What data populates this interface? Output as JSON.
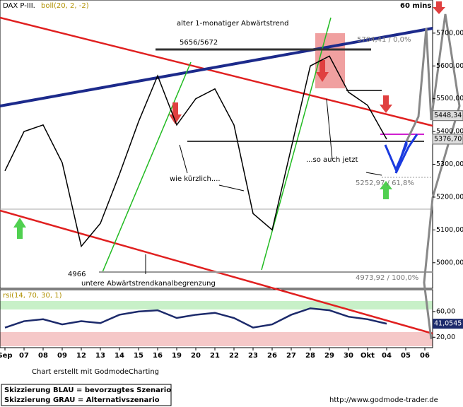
{
  "chart_data": {
    "type": "line",
    "title": "DAX P-III.",
    "subtitle": "boll(20, 2, -2)",
    "timeframe": "60 mins",
    "categories": [
      "Sep",
      "07",
      "08",
      "09",
      "12",
      "13",
      "14",
      "15",
      "16",
      "19",
      "20",
      "21",
      "22",
      "23",
      "26",
      "27",
      "28",
      "29",
      "30",
      "Okt",
      "04",
      "05",
      "06"
    ],
    "series": [
      {
        "name": "DAX P-III.",
        "color": "#000000",
        "values": [
          5280,
          5400,
          5420,
          5305,
          5050,
          5120,
          5270,
          5430,
          5570,
          5420,
          5500,
          5530,
          5420,
          5150,
          5100,
          5350,
          5600,
          5630,
          5520,
          5480,
          5376.7,
          null,
          null
        ]
      },
      {
        "name": "rsi(14, 70, 30, 1)",
        "color": "#1c2a6b",
        "axis": "y2",
        "values": [
          35,
          45,
          48,
          40,
          45,
          42,
          55,
          60,
          62,
          50,
          55,
          58,
          50,
          35,
          40,
          55,
          65,
          62,
          52,
          48,
          41.0545,
          null,
          null
        ]
      }
    ],
    "ylim": [
      4922,
      5801
    ],
    "yticks": [
      {
        "value": 5000,
        "label": "5000,00"
      },
      {
        "value": 5100,
        "label": "5100,00"
      },
      {
        "value": 5200,
        "label": "5200,00"
      },
      {
        "value": 5300,
        "label": "5300,00"
      },
      {
        "value": 5400,
        "label": "5400,00"
      },
      {
        "value": 5500,
        "label": "5500,00"
      },
      {
        "value": 5600,
        "label": "5600,00"
      },
      {
        "value": 5700,
        "label": "5700,00"
      }
    ],
    "y2lim": [
      6,
      94
    ],
    "y2ticks": [
      {
        "value": 60,
        "label": "60,00"
      },
      {
        "value": 20,
        "label": "20,00"
      }
    ],
    "price_tags": [
      {
        "value": 5448.34,
        "label": "5448,34"
      },
      {
        "value": 5376.7,
        "label": "5376,70"
      }
    ],
    "rsi_tag": {
      "value": 41.0545,
      "label": "41,0545"
    },
    "annotations": [
      "alter 1-monatiger Abwärtstrend",
      "5656/5672",
      "5704,41 / 0,0%",
      "wie kürzlich....",
      "...so auch jetzt",
      "5252,97 / 61,8%",
      "4966",
      "untere Abwärtstrendkanalbegrenzung",
      "4973,92 / 100,0%"
    ],
    "footer": [
      "Chart erstellt mit GodmodeCharting",
      "Skizzierung BLAU = bevorzugtes Szenario",
      "Skizzierung GRAU = Alternativszenario",
      "http://www.godmode-trader.de"
    ]
  }
}
